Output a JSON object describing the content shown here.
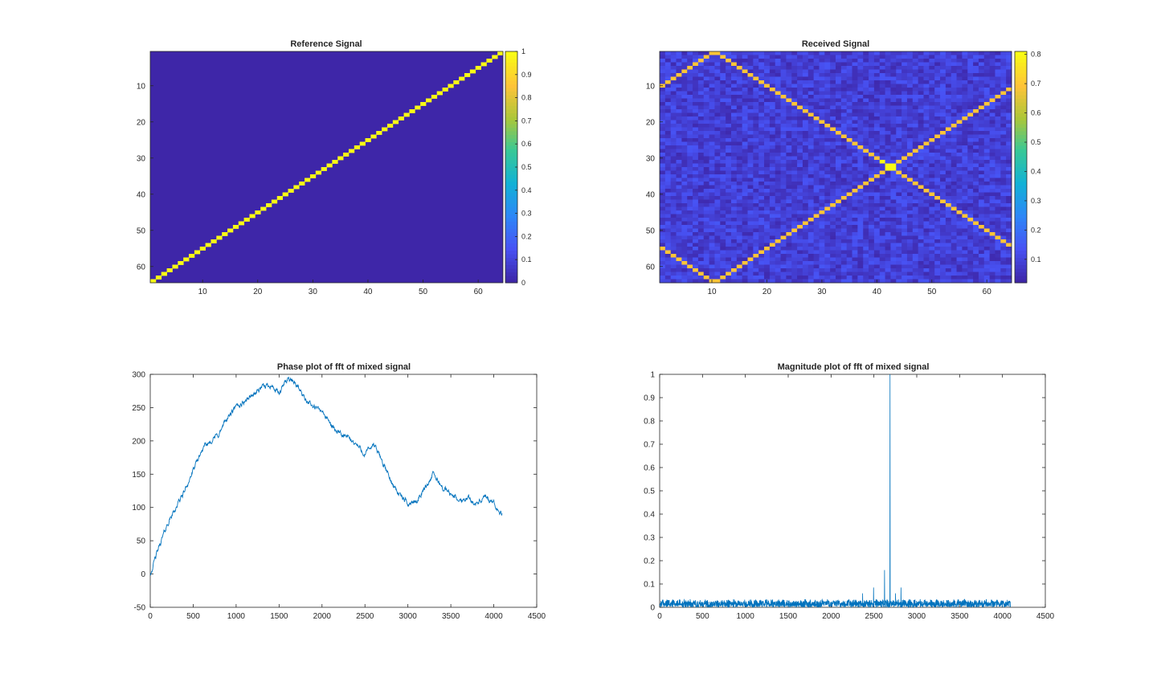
{
  "figure": {
    "background": "#ffffff",
    "colors": {
      "axis": "#262626",
      "line": "#0072BD",
      "heatmap_background": "#3E26A8",
      "heatmap_peak": "#F9FB0E"
    }
  },
  "chart_data": [
    {
      "type": "heatmap",
      "title": "Reference Signal",
      "xlabel": "",
      "ylabel": "",
      "size": [
        64,
        64
      ],
      "xlim": [
        0.5,
        64.5
      ],
      "ylim": [
        0.5,
        64.5
      ],
      "y_reversed": true,
      "x_ticks": [
        10,
        20,
        30,
        40,
        50,
        60
      ],
      "y_ticks": [
        10,
        20,
        30,
        40,
        50,
        60
      ],
      "pattern": "anti-diagonal: value 1 where row + column = 65, else 0",
      "background_value": 0,
      "peak_value": 1,
      "clim": [
        0,
        1
      ],
      "colorbar_ticks": [
        0,
        0.1,
        0.2,
        0.3,
        0.4,
        0.5,
        0.6,
        0.7,
        0.8,
        0.9,
        1
      ],
      "colormap": "parula",
      "grid": false
    },
    {
      "type": "heatmap",
      "title": "Received Signal",
      "xlabel": "",
      "ylabel": "",
      "size": [
        64,
        64
      ],
      "xlim": [
        0.5,
        64.5
      ],
      "ylim": [
        0.5,
        64.5
      ],
      "y_reversed": true,
      "x_ticks": [
        10,
        20,
        30,
        40,
        50,
        60
      ],
      "y_ticks": [
        10,
        20,
        30,
        40,
        50,
        60
      ],
      "pattern": "noisy background (about 0.02-0.15) with two reflected diagonal lines of value about 0.7; the lines intersect near column 42, row 32 where the value is about 0.8",
      "line_value": 0.7,
      "peak_value": 0.81,
      "clim": [
        0.02,
        0.81
      ],
      "colorbar_ticks": [
        0.1,
        0.2,
        0.3,
        0.4,
        0.5,
        0.6,
        0.7,
        0.8
      ],
      "colormap": "parula",
      "grid": false
    },
    {
      "type": "line",
      "title": "Phase plot of fft of mixed signal",
      "xlabel": "",
      "ylabel": "",
      "xlim": [
        0,
        4500
      ],
      "ylim": [
        -50,
        300
      ],
      "x_ticks": [
        0,
        500,
        1000,
        1500,
        2000,
        2500,
        3000,
        3500,
        4000,
        4500
      ],
      "y_ticks": [
        -50,
        0,
        50,
        100,
        150,
        200,
        250,
        300
      ],
      "grid": false,
      "series": [
        {
          "color": "#0072BD",
          "x": [
            0,
            100,
            200,
            300,
            400,
            500,
            600,
            700,
            800,
            900,
            1000,
            1100,
            1200,
            1300,
            1400,
            1500,
            1600,
            1700,
            1800,
            1900,
            2000,
            2100,
            2200,
            2300,
            2400,
            2500,
            2600,
            2700,
            2800,
            2900,
            3000,
            3100,
            3200,
            3300,
            3400,
            3500,
            3600,
            3700,
            3800,
            3900,
            4000,
            4096
          ],
          "y": [
            0,
            40,
            75,
            100,
            125,
            155,
            185,
            200,
            210,
            235,
            250,
            260,
            270,
            280,
            285,
            270,
            295,
            285,
            265,
            250,
            245,
            225,
            210,
            205,
            195,
            180,
            195,
            170,
            140,
            120,
            105,
            110,
            130,
            150,
            130,
            120,
            110,
            115,
            105,
            115,
            105,
            90
          ]
        }
      ]
    },
    {
      "type": "line",
      "title": "Magnitude plot of fft of mixed signal",
      "xlabel": "",
      "ylabel": "",
      "xlim": [
        0,
        4500
      ],
      "ylim": [
        0,
        1
      ],
      "x_ticks": [
        0,
        500,
        1000,
        1500,
        2000,
        2500,
        3000,
        3500,
        4000,
        4500
      ],
      "y_ticks": [
        0,
        0.1,
        0.2,
        0.3,
        0.4,
        0.5,
        0.6,
        0.7,
        0.8,
        0.9,
        1
      ],
      "grid": false,
      "noise_floor": [
        0.01,
        0.035
      ],
      "n_points": 4096,
      "series": [
        {
          "color": "#0072BD",
          "x": [
            2368,
            2496,
            2624,
            2688,
            2752,
            2816
          ],
          "y": [
            0.06,
            0.085,
            0.16,
            1.0,
            0.06,
            0.085
          ]
        }
      ]
    }
  ]
}
